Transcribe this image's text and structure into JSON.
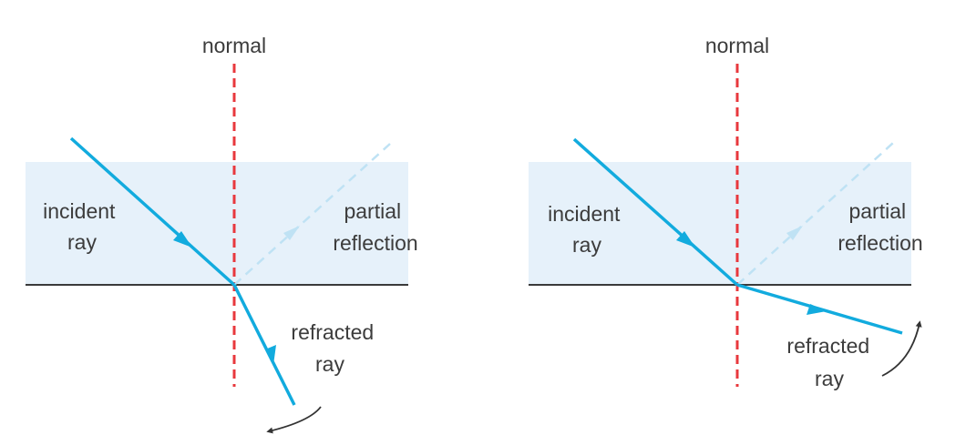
{
  "colors": {
    "glass_fill": "#e6f1fa",
    "ray": "#12abde",
    "reflection": "#bfe2f4",
    "normal": "#e8383d",
    "boundary": "#3a3a3a",
    "arrow": "#333333",
    "text": "#3c3c3c"
  },
  "panels": [
    {
      "normal_label": "normal",
      "incident_label": [
        "incident",
        "ray"
      ],
      "reflection_label": [
        "partial",
        "reflection"
      ],
      "refracted_label": [
        "refracted",
        "ray"
      ],
      "rotation_arrow": "curved-arrow-counterclockwise"
    },
    {
      "normal_label": "normal",
      "incident_label": [
        "incident",
        "ray"
      ],
      "reflection_label": [
        "partial",
        "reflection"
      ],
      "refracted_label": [
        "refracted",
        "ray"
      ],
      "rotation_arrow": "curved-arrow-clockwise"
    }
  ]
}
